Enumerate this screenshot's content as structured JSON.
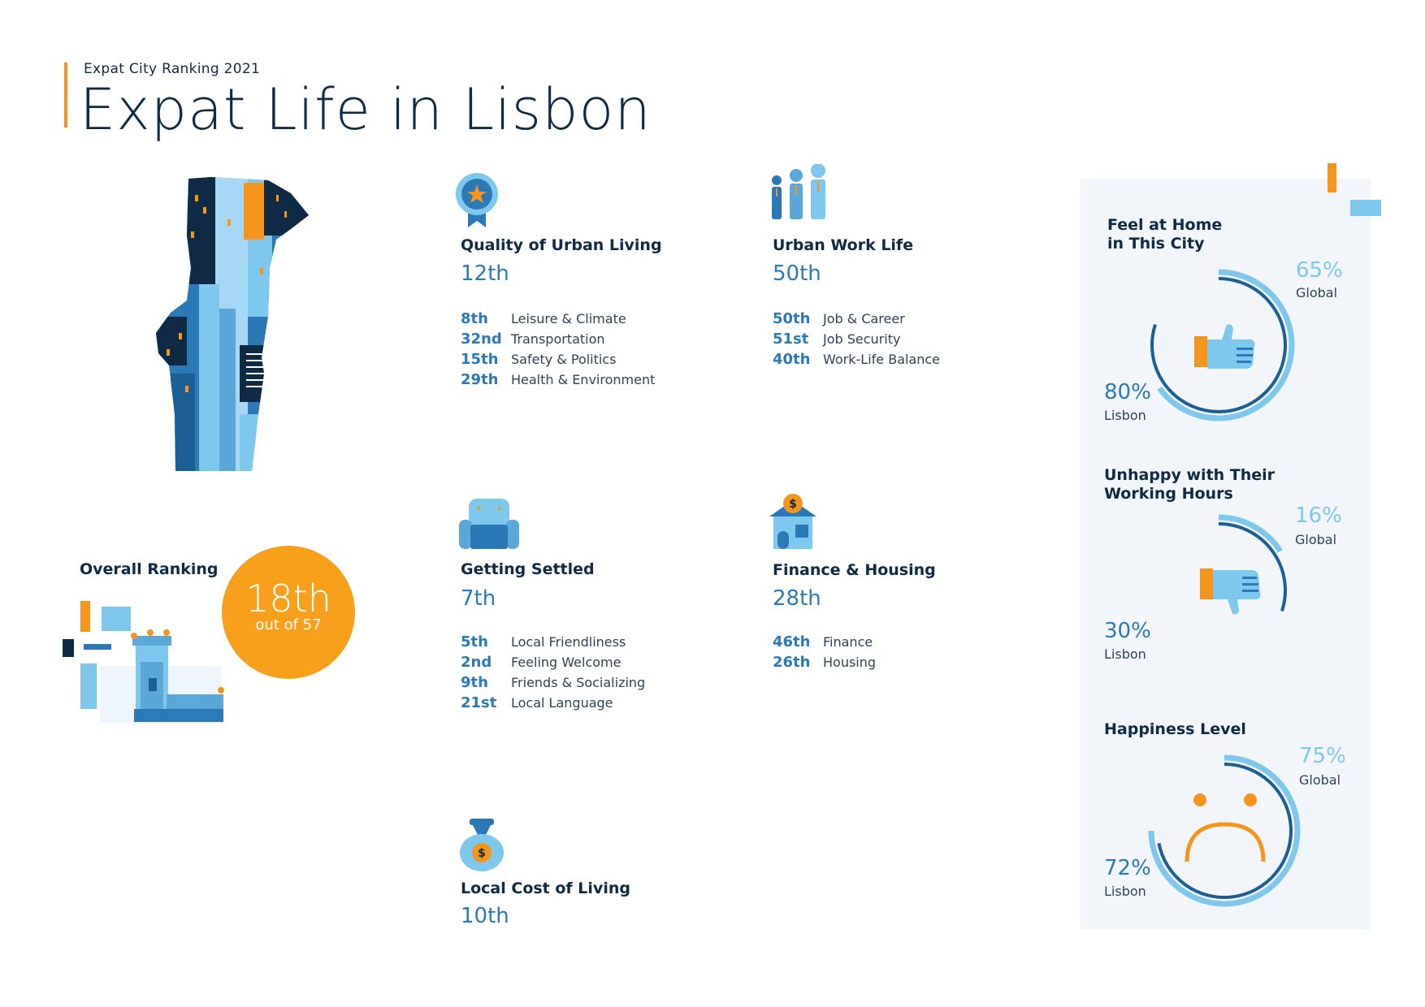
{
  "header": {
    "subtitle": "Expat City Ranking 2021",
    "title": "Expat Life in Lisbon"
  },
  "overall": {
    "label": "Overall Ranking",
    "rank": "18th",
    "out_of": "out of 57"
  },
  "categories": {
    "quality": {
      "title": "Quality of Urban Living",
      "rank": "12th",
      "icon": "award-ribbon-icon",
      "items": [
        {
          "rank": "8th",
          "label": "Leisure & Climate"
        },
        {
          "rank": "32nd",
          "label": "Transportation"
        },
        {
          "rank": "15th",
          "label": "Safety & Politics"
        },
        {
          "rank": "29th",
          "label": "Health & Environment"
        }
      ]
    },
    "work": {
      "title": "Urban Work Life",
      "rank": "50th",
      "icon": "people-icon",
      "items": [
        {
          "rank": "50th",
          "label": "Job & Career"
        },
        {
          "rank": "51st",
          "label": "Job Security"
        },
        {
          "rank": "40th",
          "label": "Work-Life Balance"
        }
      ]
    },
    "settled": {
      "title": "Getting Settled",
      "rank": "7th",
      "icon": "armchair-icon",
      "items": [
        {
          "rank": "5th",
          "label": "Local Friendliness"
        },
        {
          "rank": "2nd",
          "label": "Feeling Welcome"
        },
        {
          "rank": "9th",
          "label": "Friends & Socializing"
        },
        {
          "rank": "21st",
          "label": "Local Language"
        }
      ]
    },
    "finance": {
      "title": "Finance & Housing",
      "rank": "28th",
      "icon": "house-dollar-icon",
      "items": [
        {
          "rank": "46th",
          "label": "Finance"
        },
        {
          "rank": "26th",
          "label": "Housing"
        }
      ]
    },
    "cost": {
      "title": "Local Cost of Living",
      "rank": "10th",
      "icon": "money-bag-icon"
    }
  },
  "stats": [
    {
      "title_line1": "Feel at Home",
      "title_line2": "in This City",
      "global_pct": "65%",
      "global_label": "Global",
      "lisbon_pct": "80%",
      "lisbon_label": "Lisbon",
      "global_value": 65,
      "lisbon_value": 80,
      "icon": "thumbs-up-icon"
    },
    {
      "title_line1": "Unhappy with Their",
      "title_line2": "Working Hours",
      "global_pct": "16%",
      "global_label": "Global",
      "lisbon_pct": "30%",
      "lisbon_label": "Lisbon",
      "global_value": 16,
      "lisbon_value": 30,
      "icon": "thumbs-down-icon"
    },
    {
      "title_line1": "Happiness Level",
      "title_line2": "",
      "global_pct": "75%",
      "global_label": "Global",
      "lisbon_pct": "72%",
      "lisbon_label": "Lisbon",
      "global_value": 75,
      "lisbon_value": 72,
      "icon": "sad-face-icon"
    }
  ],
  "colors": {
    "navy": "#0f2a44",
    "blue": "#2b7ab7",
    "light_blue": "#7ec8ee",
    "orange": "#f5951d"
  }
}
